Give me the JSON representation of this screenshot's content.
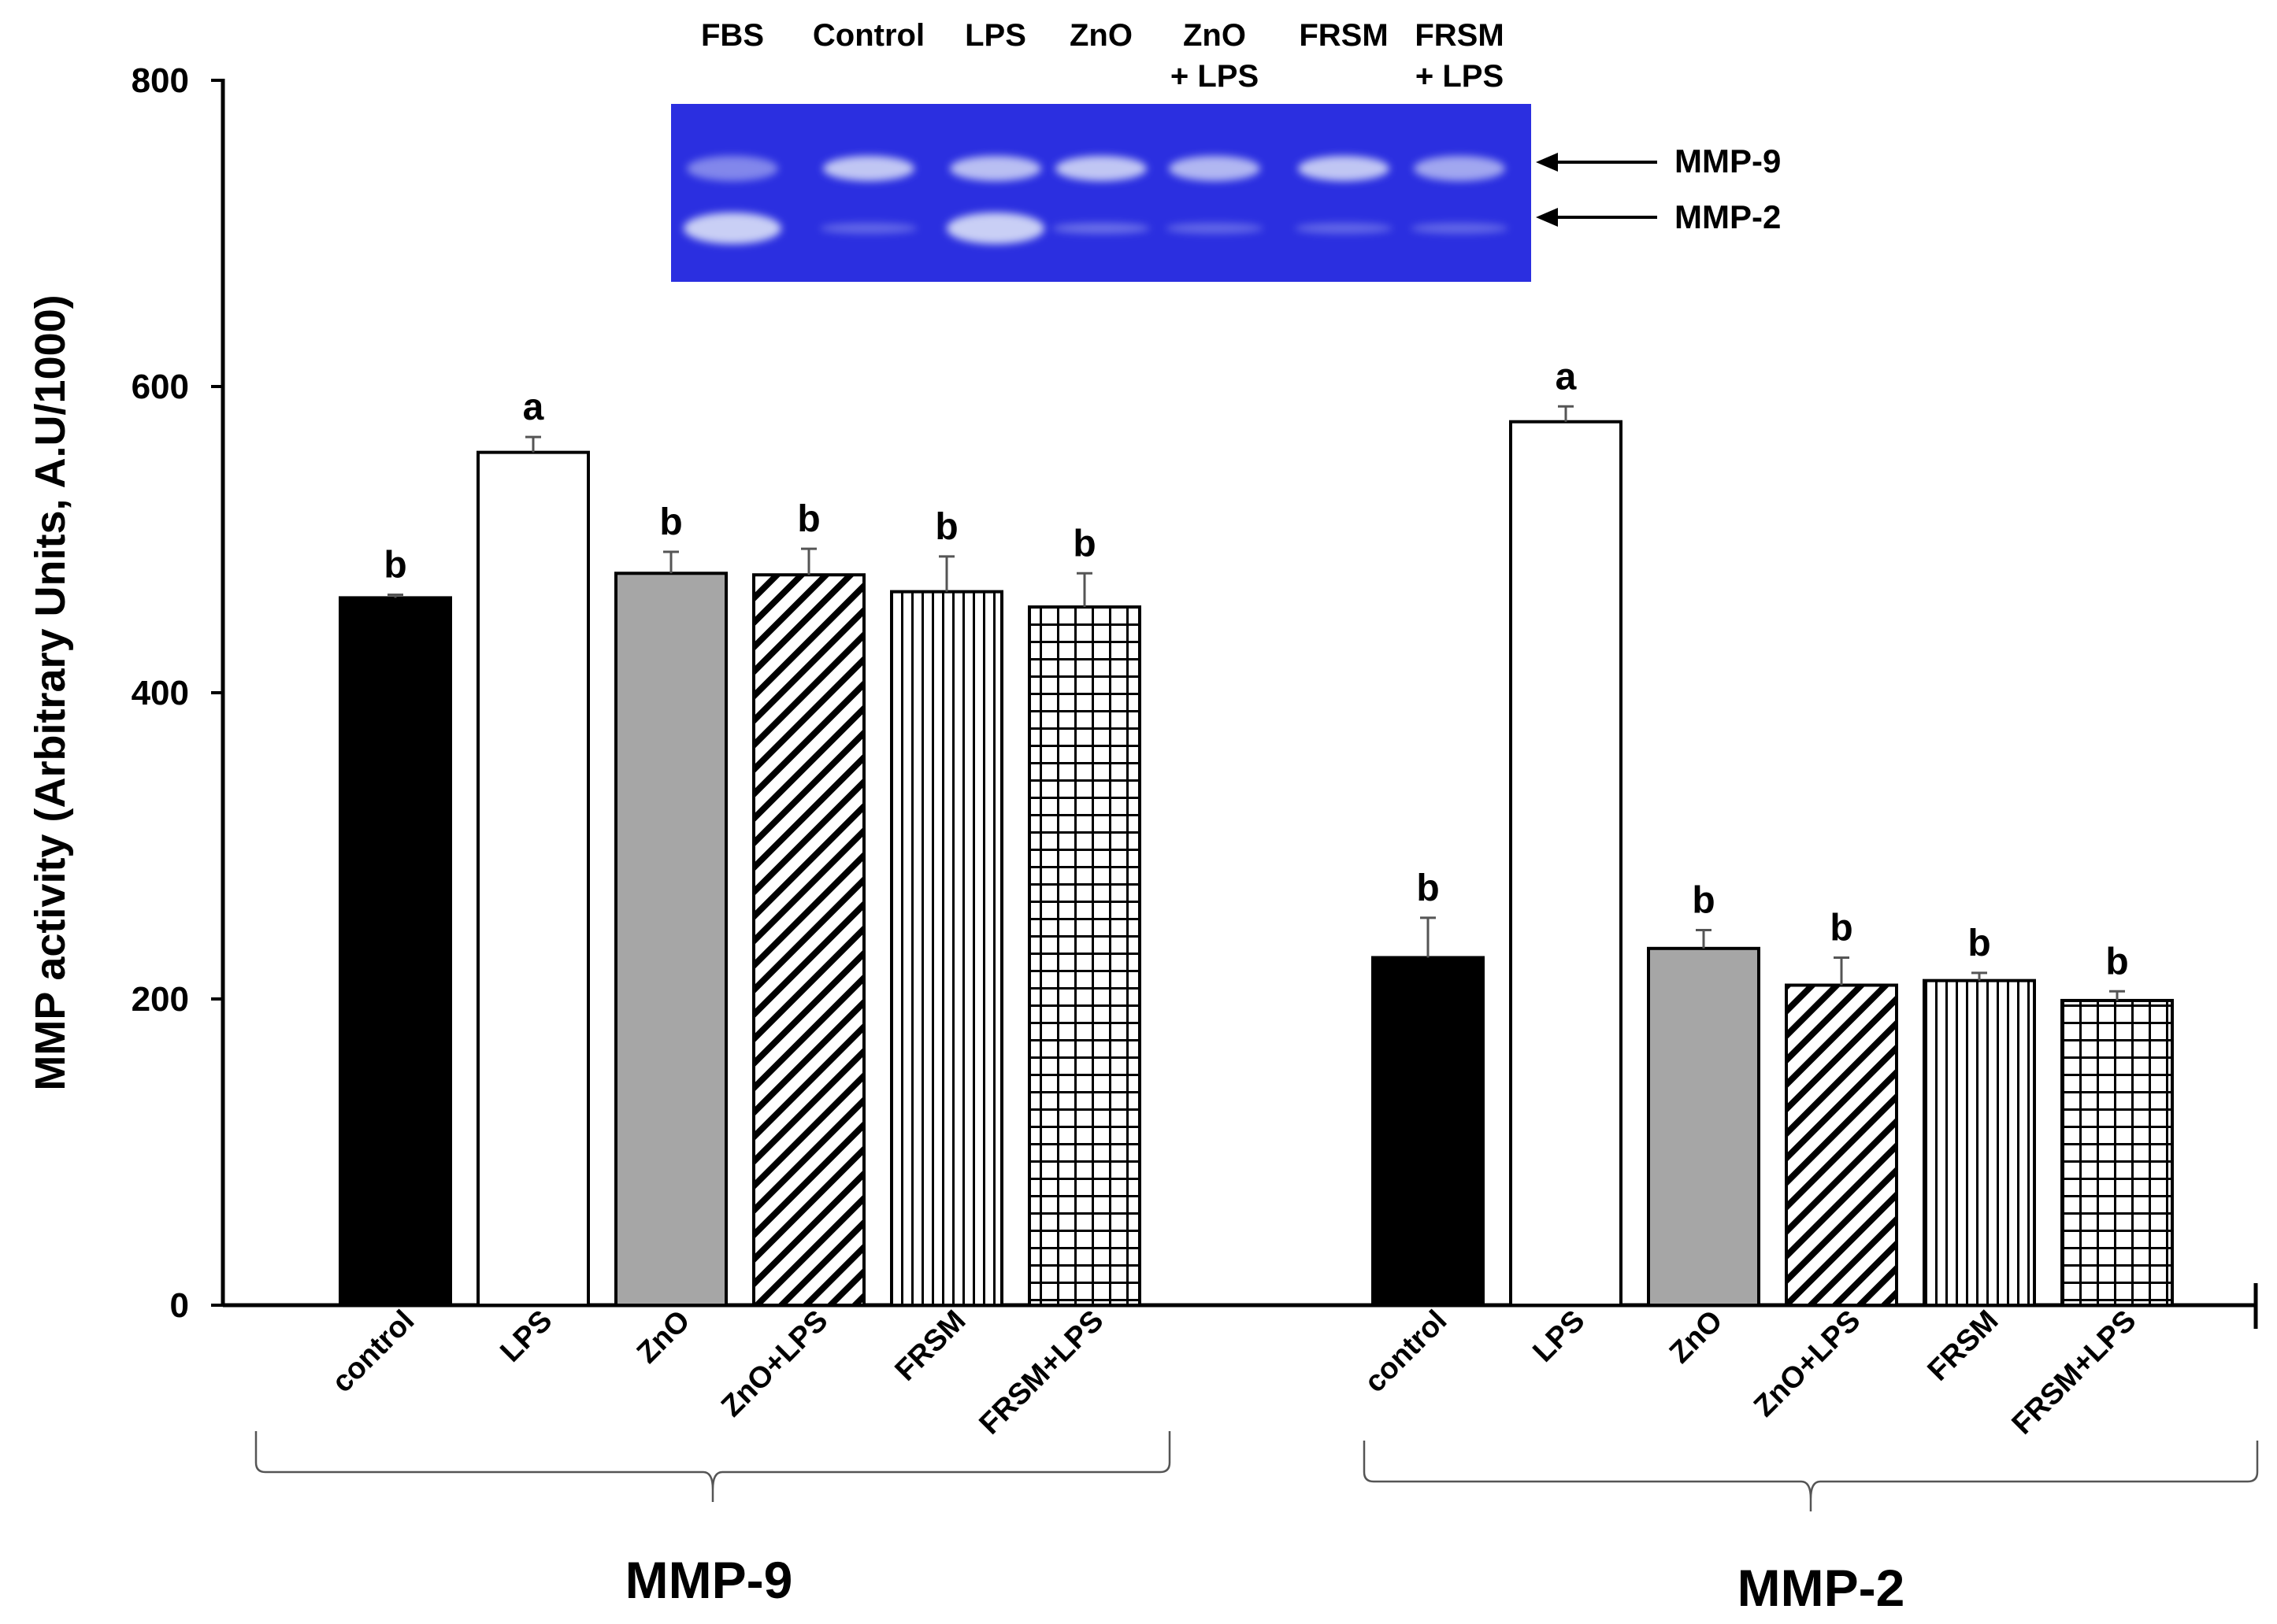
{
  "chart_data": {
    "type": "bar",
    "title": "",
    "xlabel": "",
    "ylabel": "MMP activity (Arbitrary Units, A.U/1000)",
    "ylim": [
      0,
      800
    ],
    "yticks": [
      0,
      200,
      400,
      600,
      800
    ],
    "grid": false,
    "categories": [
      "control",
      "LPS",
      "ZnO",
      "ZnO+LPS",
      "FRSM",
      "FRSM+LPS"
    ],
    "category_styles": [
      "solid-black",
      "white",
      "gray",
      "diagonal-hatch",
      "vertical-lines",
      "grid-hatch"
    ],
    "groups": [
      {
        "name": "MMP-9",
        "values": [
          462,
          557,
          478,
          477,
          466,
          456
        ],
        "errors": [
          2,
          10,
          14,
          17,
          23,
          22
        ],
        "significance": [
          "b",
          "a",
          "b",
          "b",
          "b",
          "b"
        ]
      },
      {
        "name": "MMP-2",
        "values": [
          227,
          577,
          233,
          209,
          212,
          199
        ],
        "errors": [
          26,
          10,
          12,
          18,
          5,
          6
        ],
        "significance": [
          "b",
          "a",
          "b",
          "b",
          "b",
          "b"
        ]
      }
    ]
  },
  "gel_inset": {
    "lanes": [
      {
        "line1": "FBS",
        "line2": ""
      },
      {
        "line1": "Control",
        "line2": ""
      },
      {
        "line1": "LPS",
        "line2": ""
      },
      {
        "line1": "ZnO",
        "line2": ""
      },
      {
        "line1": "ZnO",
        "line2": "+ LPS"
      },
      {
        "line1": "FRSM",
        "line2": ""
      },
      {
        "line1": "FRSM",
        "line2": "+ LPS"
      }
    ],
    "bands": [
      "MMP-9",
      "MMP-2"
    ],
    "colors": {
      "background": "#2b2fe0",
      "band": "#c9cff5"
    }
  },
  "colors": {
    "bar_edge": "#000000",
    "solid_fill": "#000000",
    "gray_fill": "#a6a6a6",
    "white_fill": "#ffffff"
  }
}
